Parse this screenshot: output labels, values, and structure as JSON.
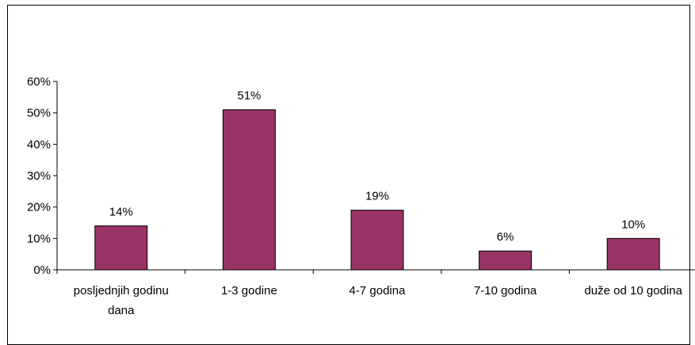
{
  "chart_data": {
    "type": "bar",
    "title": "",
    "xlabel": "",
    "ylabel": "",
    "categories": [
      [
        "posljednjih godinu",
        "dana"
      ],
      [
        "1-3 godine"
      ],
      [
        "4-7 godina"
      ],
      [
        "7-10 godina"
      ],
      [
        "duže od 10 godina"
      ]
    ],
    "values": [
      14,
      51,
      19,
      6,
      10
    ],
    "data_labels": [
      "14%",
      "51%",
      "19%",
      "6%",
      "10%"
    ],
    "ylim": [
      0,
      60
    ],
    "y_ticks": [
      0,
      10,
      20,
      30,
      40,
      50,
      60
    ],
    "y_tick_labels": [
      "0%",
      "10%",
      "20%",
      "30%",
      "40%",
      "50%",
      "60%"
    ],
    "grid": false,
    "legend": "none",
    "bar_color": "#993366"
  }
}
